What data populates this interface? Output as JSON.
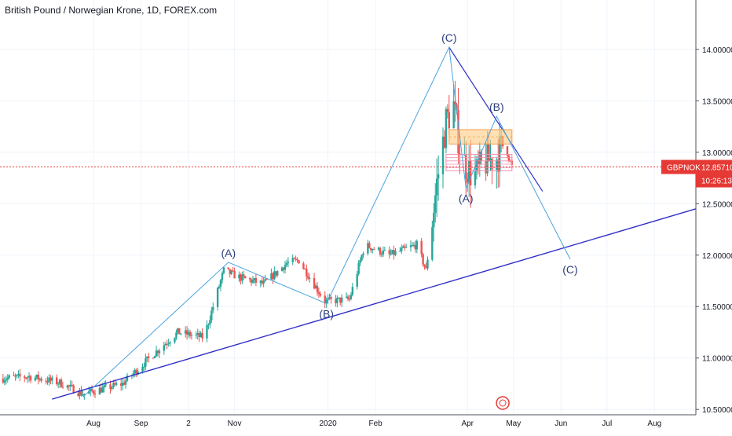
{
  "header": {
    "title": "British Pound / Norwegian Krone, 1D, FOREX.com"
  },
  "colors": {
    "up": "#26a69a",
    "down": "#ef5350",
    "wave_line": "#4aa3df",
    "trend_line": "#3131c8",
    "price_line": "#e53935",
    "grid": "#f0f3fa",
    "axis_text": "#131722",
    "box_fill": "#ffcc80",
    "box_stroke": "#f48fb1"
  },
  "price_badge": {
    "symbol": "GBPNOK",
    "price": "12.85710",
    "countdown": "10:26:13"
  },
  "chart_data": {
    "type": "candlestick",
    "title": "British Pound / Norwegian Krone, 1D, FOREX.com",
    "xlabel": "",
    "ylabel": "",
    "ylim": [
      10.28,
      14.48
    ],
    "y_ticks": [
      "14.00000",
      "13.50000",
      "13.00000",
      "12.50000",
      "12.00000",
      "11.50000",
      "11.00000",
      "10.50000"
    ],
    "y_tick_values": [
      14.0,
      13.5,
      13.0,
      12.5,
      12.0,
      11.5,
      11.0,
      10.5
    ],
    "x_ticks": [
      "Aug",
      "Sep",
      "2",
      "Nov",
      "2020",
      "Feb",
      "Apr",
      "May",
      "Jun",
      "Jul",
      "Aug"
    ],
    "x_tick_dates": [
      "2019-08-01",
      "2019-09-01",
      "2019-10-02",
      "2019-11-01",
      "2020-01-01",
      "2020-02-01",
      "2020-04-01",
      "2020-05-01",
      "2020-06-01",
      "2020-07-01",
      "2020-08-01"
    ],
    "x_range": [
      "2019-06-01",
      "2020-08-28"
    ],
    "current_price": 12.8571,
    "candle_anchors": [
      {
        "date": "2019-06-01",
        "close": 10.8
      },
      {
        "date": "2019-06-20",
        "close": 10.82
      },
      {
        "date": "2019-07-10",
        "close": 10.76
      },
      {
        "date": "2019-07-25",
        "close": 10.65
      },
      {
        "date": "2019-08-20",
        "close": 10.75
      },
      {
        "date": "2019-09-10",
        "close": 11.05
      },
      {
        "date": "2019-09-25",
        "close": 11.25
      },
      {
        "date": "2019-10-12",
        "close": 11.2
      },
      {
        "date": "2019-10-25",
        "close": 11.85
      },
      {
        "date": "2019-11-05",
        "close": 11.78
      },
      {
        "date": "2019-11-20",
        "close": 11.72
      },
      {
        "date": "2019-12-05",
        "close": 11.92
      },
      {
        "date": "2019-12-13",
        "close": 11.95
      },
      {
        "date": "2019-12-30",
        "close": 11.55
      },
      {
        "date": "2020-01-15",
        "close": 11.57
      },
      {
        "date": "2020-01-25",
        "close": 12.1
      },
      {
        "date": "2020-02-10",
        "close": 12.0
      },
      {
        "date": "2020-02-28",
        "close": 12.1
      },
      {
        "date": "2020-03-05",
        "close": 11.85
      },
      {
        "date": "2020-03-12",
        "close": 12.7
      },
      {
        "date": "2020-03-18",
        "close": 13.3
      },
      {
        "date": "2020-03-23",
        "close": 13.45
      },
      {
        "date": "2020-03-28",
        "close": 12.95
      },
      {
        "date": "2020-04-05",
        "close": 12.75
      },
      {
        "date": "2020-04-12",
        "close": 12.9
      },
      {
        "date": "2020-04-20",
        "close": 12.95
      },
      {
        "date": "2020-04-25",
        "close": 13.1
      },
      {
        "date": "2020-04-28",
        "close": 12.95
      },
      {
        "date": "2020-04-30",
        "close": 12.86
      }
    ],
    "wave_path": [
      {
        "label": "",
        "date": "2019-07-25",
        "value": 10.62
      },
      {
        "label": "(A)",
        "date": "2019-10-28",
        "value": 11.93
      },
      {
        "label": "(B)",
        "date": "2019-12-31",
        "value": 11.53
      },
      {
        "label": "(C)",
        "date": "2020-03-20",
        "value": 14.02
      },
      {
        "label": "(A)",
        "date": "2020-03-31",
        "value": 12.65
      },
      {
        "label": "(B)",
        "date": "2020-04-20",
        "value": 13.35
      },
      {
        "label": "(C)",
        "date": "2020-06-07",
        "value": 11.96
      }
    ],
    "trend_lines": [
      {
        "name": "support",
        "from": {
          "date": "2019-07-05",
          "value": 10.6
        },
        "to": {
          "date": "2020-08-28",
          "value": 12.45
        }
      },
      {
        "name": "resistance",
        "from": {
          "date": "2020-03-20",
          "value": 14.02
        },
        "to": {
          "date": "2020-05-20",
          "value": 12.62
        }
      }
    ],
    "zones": [
      {
        "name": "supply",
        "date_from": "2020-03-20",
        "date_to": "2020-04-30",
        "value_low": 13.08,
        "value_high": 13.22
      },
      {
        "name": "range",
        "date_from": "2020-03-18",
        "date_to": "2020-04-30",
        "value_low": 12.82,
        "value_high": 12.98
      }
    ],
    "grid": true,
    "legend": "none"
  }
}
